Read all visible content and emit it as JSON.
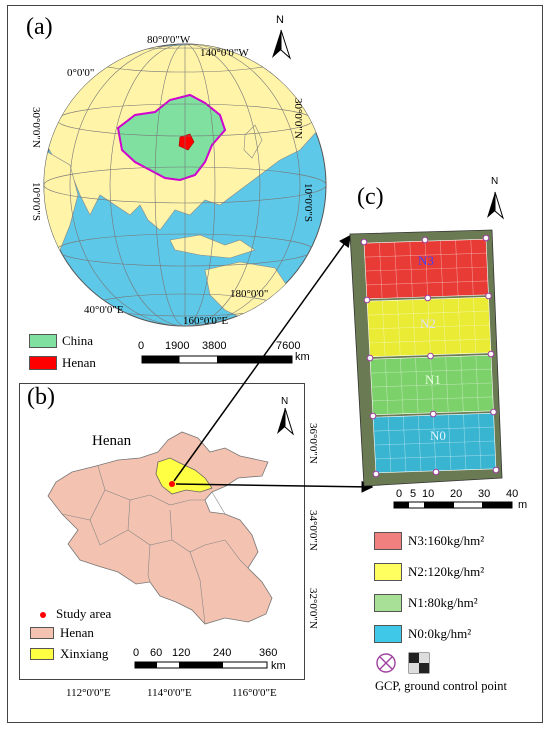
{
  "panels": {
    "a": {
      "label": "(a)",
      "coords": {
        "lon_80w": "80°0'0\"W",
        "lon_140w": "140°0'0\"W",
        "lon_0": "0°0'0\"",
        "lat_30n_left": "30°0'0\"N",
        "lat_10s_left": "10°0'0\"S",
        "lat_30n_right": "30°0'0\"N",
        "lat_10s_right": "10°0'0\"S",
        "lon_180": "180°0'0\"",
        "lon_40e": "40°0'0\"E",
        "lon_160e": "160°0'0\"E"
      },
      "legend": [
        {
          "label": "China",
          "color": "#7fe0a0"
        },
        {
          "label": "Henan",
          "color": "#ff0000"
        }
      ],
      "scalebar": {
        "ticks": [
          "0",
          "1900",
          "3800",
          "7600"
        ],
        "unit": "km"
      },
      "north": "N"
    },
    "b": {
      "label": "(b)",
      "title": "Henan",
      "coords": {
        "lat_36": "36°0'0\"N",
        "lat_34": "34°0'0\"N",
        "lat_32": "32°0'0\"N",
        "lon_112": "112°0'0\"E",
        "lon_114": "114°0'0\"E",
        "lon_116": "116°0'0\"E"
      },
      "legend": [
        {
          "label": "Study area",
          "color": "#ff0000"
        },
        {
          "label": "Henan",
          "color": "#f4c2b0"
        },
        {
          "label": "Xinxiang",
          "color": "#ffff44"
        }
      ],
      "scalebar": {
        "ticks": [
          "0",
          "60",
          "120",
          "240",
          "360"
        ],
        "unit": "km"
      },
      "north": "N"
    },
    "c": {
      "label": "(c)",
      "plots": [
        {
          "label": "N3",
          "color": "#ff3030"
        },
        {
          "label": "N2",
          "color": "#ffff30"
        },
        {
          "label": "N1",
          "color": "#80e070"
        },
        {
          "label": "N0",
          "color": "#30c0e8"
        }
      ],
      "scalebar": {
        "ticks": [
          "0",
          "5",
          "10",
          "20",
          "30",
          "40"
        ],
        "unit": "m"
      },
      "north": "N",
      "legend": [
        {
          "label": "N3:160kg/hm²",
          "color": "#f08080"
        },
        {
          "label": "N2:120kg/hm²",
          "color": "#ffff60"
        },
        {
          "label": "N1:80kg/hm²",
          "color": "#a8e098"
        },
        {
          "label": "N0:0kg/hm²",
          "color": "#40c8e8"
        }
      ],
      "gcp_label": "GCP, ground control point"
    }
  }
}
